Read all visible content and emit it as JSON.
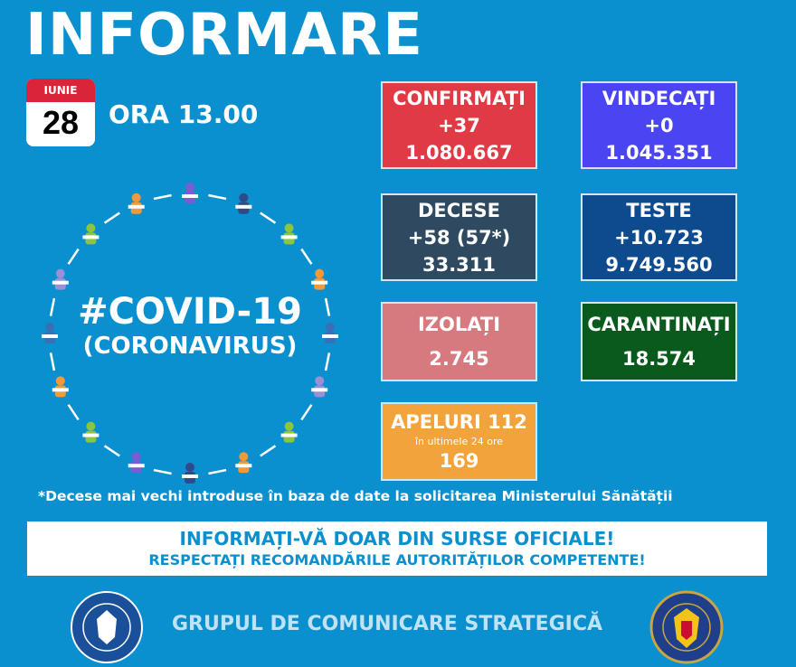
{
  "title": "INFORMARE",
  "date": {
    "month": "IUNIE",
    "day": "28"
  },
  "time": "ORA 13.00",
  "covid": {
    "line1": "#COVID-19",
    "line2": "(CORONAVIRUS)"
  },
  "stats": [
    {
      "label": "CONFIRMAȚI",
      "delta": "+37",
      "total": "1.080.667",
      "color": "#e03a45"
    },
    {
      "label": "VINDECAȚI",
      "delta": "+0",
      "total": "1.045.351",
      "color": "#4a45f0"
    },
    {
      "label": "DECESE",
      "delta": "+58 (57*)",
      "total": "33.311",
      "color": "#2f4a60"
    },
    {
      "label": "TESTE",
      "delta": "+10.723",
      "total": "9.749.560",
      "color": "#0d4a8e"
    },
    {
      "label": "IZOLAȚI",
      "total": "2.745",
      "color": "#d67a80"
    },
    {
      "label": "CARANTINAȚI",
      "total": "18.574",
      "color": "#0b5a1d"
    },
    {
      "label": "APELURI 112",
      "sub": "în ultimele 24 ore",
      "total": "169",
      "color": "#f2a33b"
    }
  ],
  "footnote": "*Decese mai vechi introduse în baza de date la solicitarea Ministerului Sănătății",
  "banner": {
    "line1": "INFORMAȚI-VĂ DOAR DIN SURSE OFICIALE!",
    "line2": "RESPECTAȚI RECOMANDĂRILE AUTORITĂȚILOR COMPETENTE!"
  },
  "footer": "GRUPUL DE COMUNICARE STRATEGICĂ",
  "logos": {
    "left": "GUVERNUL ROMÂNIEI",
    "right": "DEPARTAMENTUL PENTRU SITUAȚII DE URGENȚĂ · M.A.I."
  },
  "colors": {
    "background": "#0a8fcf"
  }
}
